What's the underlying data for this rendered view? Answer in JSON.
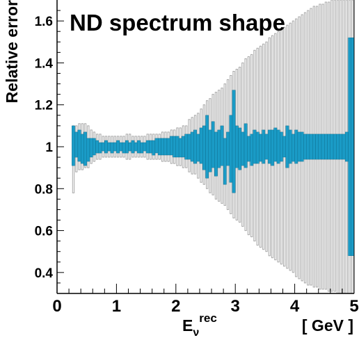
{
  "chart_data": {
    "type": "bar",
    "title": "ND spectrum shape",
    "ylabel": "Relative error",
    "xlabel": {
      "main": "E",
      "sub": "ν",
      "sup": "rec",
      "unit": "[ GeV ]"
    },
    "xlim": [
      0,
      5
    ],
    "ylim": [
      0.3,
      1.7
    ],
    "xticks": [
      {
        "v": 0,
        "label": "0"
      },
      {
        "v": 1,
        "label": "1"
      },
      {
        "v": 2,
        "label": "2"
      },
      {
        "v": 3,
        "label": "3"
      },
      {
        "v": 4,
        "label": "4"
      },
      {
        "v": 5,
        "label": "5"
      }
    ],
    "yticks": [
      {
        "v": 0.4,
        "label": "0.4"
      },
      {
        "v": 0.6,
        "label": "0.6"
      },
      {
        "v": 0.8,
        "label": "0.8"
      },
      {
        "v": 1.0,
        "label": "1"
      },
      {
        "v": 1.2,
        "label": "1.2"
      },
      {
        "v": 1.4,
        "label": "1.4"
      },
      {
        "v": 1.6,
        "label": "1.6"
      }
    ],
    "colors": {
      "filled": "#1a9bc6",
      "filled_edge": "#0a6a8a",
      "open_edge": "#a8a8a8",
      "axis": "#000000"
    },
    "series": [
      {
        "style": "open-bands",
        "bins": [
          [
            0.25,
            0.3,
            0.78,
            1.1
          ],
          [
            0.3,
            0.35,
            0.88,
            1.1
          ],
          [
            0.35,
            0.4,
            0.89,
            1.11
          ],
          [
            0.4,
            0.45,
            0.89,
            1.11
          ],
          [
            0.45,
            0.5,
            0.9,
            1.11
          ],
          [
            0.5,
            0.55,
            0.9,
            1.1
          ],
          [
            0.55,
            0.6,
            0.92,
            1.08
          ],
          [
            0.6,
            0.65,
            0.93,
            1.07
          ],
          [
            0.65,
            0.7,
            0.94,
            1.06
          ],
          [
            0.7,
            0.75,
            0.94,
            1.06
          ],
          [
            0.75,
            0.8,
            0.95,
            1.05
          ],
          [
            0.8,
            0.85,
            0.95,
            1.05
          ],
          [
            0.85,
            0.9,
            0.95,
            1.05
          ],
          [
            0.9,
            0.95,
            0.95,
            1.05
          ],
          [
            0.95,
            1.0,
            0.95,
            1.05
          ],
          [
            1.0,
            1.05,
            0.95,
            1.05
          ],
          [
            1.05,
            1.1,
            0.95,
            1.05
          ],
          [
            1.1,
            1.15,
            0.95,
            1.05
          ],
          [
            1.15,
            1.2,
            0.94,
            1.06
          ],
          [
            1.2,
            1.25,
            0.94,
            1.06
          ],
          [
            1.25,
            1.3,
            0.95,
            1.05
          ],
          [
            1.3,
            1.35,
            0.95,
            1.05
          ],
          [
            1.35,
            1.4,
            0.95,
            1.05
          ],
          [
            1.4,
            1.45,
            0.95,
            1.05
          ],
          [
            1.45,
            1.5,
            0.95,
            1.05
          ],
          [
            1.5,
            1.55,
            0.94,
            1.06
          ],
          [
            1.55,
            1.6,
            0.94,
            1.06
          ],
          [
            1.6,
            1.65,
            0.94,
            1.06
          ],
          [
            1.65,
            1.7,
            0.94,
            1.06
          ],
          [
            1.7,
            1.75,
            0.94,
            1.06
          ],
          [
            1.75,
            1.8,
            0.93,
            1.07
          ],
          [
            1.8,
            1.85,
            0.93,
            1.07
          ],
          [
            1.85,
            1.9,
            0.93,
            1.07
          ],
          [
            1.9,
            1.95,
            0.92,
            1.08
          ],
          [
            1.95,
            2.0,
            0.92,
            1.08
          ],
          [
            2.0,
            2.05,
            0.91,
            1.09
          ],
          [
            2.05,
            2.1,
            0.91,
            1.09
          ],
          [
            2.1,
            2.15,
            0.9,
            1.1
          ],
          [
            2.15,
            2.2,
            0.9,
            1.1
          ],
          [
            2.2,
            2.25,
            0.88,
            1.13
          ],
          [
            2.25,
            2.3,
            0.87,
            1.14
          ],
          [
            2.3,
            2.35,
            0.87,
            1.15
          ],
          [
            2.35,
            2.4,
            0.85,
            1.16
          ],
          [
            2.4,
            2.45,
            0.83,
            1.18
          ],
          [
            2.45,
            2.5,
            0.82,
            1.2
          ],
          [
            2.5,
            2.55,
            0.8,
            1.22
          ],
          [
            2.55,
            2.6,
            0.78,
            1.23
          ],
          [
            2.6,
            2.65,
            0.77,
            1.25
          ],
          [
            2.65,
            2.7,
            0.75,
            1.26
          ],
          [
            2.7,
            2.75,
            0.74,
            1.27
          ],
          [
            2.75,
            2.8,
            0.73,
            1.28
          ],
          [
            2.8,
            2.85,
            0.72,
            1.3
          ],
          [
            2.85,
            2.9,
            0.7,
            1.32
          ],
          [
            2.9,
            2.95,
            0.68,
            1.34
          ],
          [
            2.95,
            3.0,
            0.66,
            1.36
          ],
          [
            3.0,
            3.05,
            0.65,
            1.37
          ],
          [
            3.05,
            3.1,
            0.64,
            1.38
          ],
          [
            3.1,
            3.15,
            0.62,
            1.4
          ],
          [
            3.15,
            3.2,
            0.6,
            1.42
          ],
          [
            3.2,
            3.25,
            0.58,
            1.43
          ],
          [
            3.25,
            3.3,
            0.57,
            1.44
          ],
          [
            3.3,
            3.35,
            0.55,
            1.46
          ],
          [
            3.35,
            3.4,
            0.53,
            1.47
          ],
          [
            3.4,
            3.45,
            0.52,
            1.48
          ],
          [
            3.45,
            3.5,
            0.51,
            1.49
          ],
          [
            3.5,
            3.55,
            0.5,
            1.5
          ],
          [
            3.55,
            3.6,
            0.48,
            1.52
          ],
          [
            3.6,
            3.65,
            0.47,
            1.53
          ],
          [
            3.65,
            3.7,
            0.46,
            1.54
          ],
          [
            3.7,
            3.75,
            0.45,
            1.55
          ],
          [
            3.75,
            3.8,
            0.44,
            1.56
          ],
          [
            3.8,
            3.85,
            0.43,
            1.57
          ],
          [
            3.85,
            3.9,
            0.42,
            1.58
          ],
          [
            3.9,
            3.95,
            0.41,
            1.59
          ],
          [
            3.95,
            4.0,
            0.4,
            1.6
          ],
          [
            4.0,
            4.05,
            0.38,
            1.61
          ],
          [
            4.05,
            4.1,
            0.37,
            1.62
          ],
          [
            4.1,
            4.15,
            0.36,
            1.63
          ],
          [
            4.15,
            4.2,
            0.35,
            1.64
          ],
          [
            4.2,
            4.25,
            0.34,
            1.65
          ],
          [
            4.25,
            4.3,
            0.34,
            1.66
          ],
          [
            4.3,
            4.35,
            0.33,
            1.67
          ],
          [
            4.35,
            4.4,
            0.33,
            1.67
          ],
          [
            4.4,
            4.45,
            0.32,
            1.68
          ],
          [
            4.45,
            4.5,
            0.32,
            1.68
          ],
          [
            4.5,
            4.55,
            0.32,
            1.69
          ],
          [
            4.55,
            4.6,
            0.31,
            1.69
          ],
          [
            4.6,
            4.65,
            0.31,
            1.7
          ],
          [
            4.65,
            4.7,
            0.31,
            1.7
          ],
          [
            4.7,
            4.75,
            0.3,
            1.7
          ],
          [
            4.75,
            4.8,
            0.3,
            1.7
          ],
          [
            4.8,
            4.85,
            0.3,
            1.7
          ],
          [
            4.85,
            4.9,
            0.3,
            1.7
          ],
          [
            4.9,
            4.95,
            0.3,
            1.7
          ],
          [
            4.95,
            5.0,
            0.3,
            1.7
          ]
        ]
      },
      {
        "style": "filled-bands",
        "bins": [
          [
            0.25,
            0.3,
            0.91,
            1.1
          ],
          [
            0.3,
            0.35,
            0.95,
            1.07
          ],
          [
            0.35,
            0.4,
            0.93,
            1.08
          ],
          [
            0.4,
            0.45,
            0.92,
            1.06
          ],
          [
            0.45,
            0.5,
            0.91,
            1.07
          ],
          [
            0.5,
            0.55,
            0.93,
            1.04
          ],
          [
            0.55,
            0.6,
            0.95,
            1.04
          ],
          [
            0.6,
            0.65,
            0.96,
            1.04
          ],
          [
            0.65,
            0.7,
            0.97,
            1.03
          ],
          [
            0.7,
            0.75,
            0.97,
            1.02
          ],
          [
            0.75,
            0.8,
            0.98,
            1.02
          ],
          [
            0.8,
            0.85,
            0.97,
            1.03
          ],
          [
            0.85,
            0.9,
            0.98,
            1.02
          ],
          [
            0.9,
            0.95,
            0.97,
            1.02
          ],
          [
            0.95,
            1.0,
            0.98,
            1.02
          ],
          [
            1.0,
            1.05,
            0.97,
            1.03
          ],
          [
            1.05,
            1.1,
            0.98,
            1.02
          ],
          [
            1.1,
            1.15,
            0.97,
            1.02
          ],
          [
            1.15,
            1.2,
            0.97,
            1.03
          ],
          [
            1.2,
            1.25,
            0.98,
            1.02
          ],
          [
            1.25,
            1.3,
            0.97,
            1.03
          ],
          [
            1.3,
            1.35,
            0.98,
            1.02
          ],
          [
            1.35,
            1.4,
            0.97,
            1.03
          ],
          [
            1.4,
            1.45,
            0.97,
            1.02
          ],
          [
            1.45,
            1.5,
            0.98,
            1.02
          ],
          [
            1.5,
            1.55,
            0.97,
            1.03
          ],
          [
            1.55,
            1.6,
            0.97,
            1.03
          ],
          [
            1.6,
            1.65,
            0.96,
            1.03
          ],
          [
            1.65,
            1.7,
            0.97,
            1.04
          ],
          [
            1.7,
            1.75,
            0.96,
            1.04
          ],
          [
            1.75,
            1.8,
            0.96,
            1.04
          ],
          [
            1.8,
            1.85,
            0.96,
            1.04
          ],
          [
            1.85,
            1.9,
            0.96,
            1.04
          ],
          [
            1.9,
            1.95,
            0.96,
            1.05
          ],
          [
            1.95,
            2.0,
            0.95,
            1.05
          ],
          [
            2.0,
            2.05,
            0.95,
            1.05
          ],
          [
            2.05,
            2.1,
            0.95,
            1.04
          ],
          [
            2.1,
            2.15,
            0.95,
            1.05
          ],
          [
            2.15,
            2.2,
            0.94,
            1.06
          ],
          [
            2.2,
            2.25,
            0.94,
            1.06
          ],
          [
            2.25,
            2.3,
            0.93,
            1.07
          ],
          [
            2.3,
            2.35,
            0.92,
            1.08
          ],
          [
            2.35,
            2.4,
            0.93,
            1.06
          ],
          [
            2.4,
            2.45,
            0.92,
            1.09
          ],
          [
            2.45,
            2.5,
            0.89,
            1.1
          ],
          [
            2.5,
            2.55,
            0.85,
            1.15
          ],
          [
            2.55,
            2.6,
            0.88,
            1.08
          ],
          [
            2.6,
            2.65,
            0.9,
            1.12
          ],
          [
            2.65,
            2.7,
            0.86,
            1.07
          ],
          [
            2.7,
            2.75,
            0.9,
            1.08
          ],
          [
            2.75,
            2.8,
            0.91,
            1.1
          ],
          [
            2.8,
            2.85,
            0.82,
            1.04
          ],
          [
            2.85,
            2.9,
            0.91,
            1.07
          ],
          [
            2.9,
            2.95,
            0.83,
            1.15
          ],
          [
            2.95,
            3.0,
            0.78,
            1.27
          ],
          [
            3.0,
            3.05,
            0.9,
            1.1
          ],
          [
            3.05,
            3.1,
            0.89,
            1.09
          ],
          [
            3.1,
            3.15,
            0.91,
            1.07
          ],
          [
            3.15,
            3.2,
            0.9,
            1.11
          ],
          [
            3.2,
            3.25,
            0.93,
            1.05
          ],
          [
            3.25,
            3.3,
            0.91,
            1.06
          ],
          [
            3.3,
            3.35,
            0.92,
            1.08
          ],
          [
            3.35,
            3.4,
            0.92,
            1.07
          ],
          [
            3.4,
            3.45,
            0.93,
            1.06
          ],
          [
            3.45,
            3.5,
            0.92,
            1.08
          ],
          [
            3.5,
            3.55,
            0.94,
            1.06
          ],
          [
            3.55,
            3.6,
            0.92,
            1.08
          ],
          [
            3.6,
            3.65,
            0.91,
            1.08
          ],
          [
            3.65,
            3.7,
            0.93,
            1.09
          ],
          [
            3.7,
            3.75,
            0.92,
            1.08
          ],
          [
            3.75,
            3.8,
            0.93,
            1.07
          ],
          [
            3.8,
            3.85,
            0.95,
            1.05
          ],
          [
            3.85,
            3.9,
            0.9,
            1.1
          ],
          [
            3.9,
            3.95,
            0.92,
            1.08
          ],
          [
            3.95,
            4.0,
            0.93,
            1.06
          ],
          [
            4.0,
            4.05,
            0.92,
            1.08
          ],
          [
            4.05,
            4.1,
            0.93,
            1.07
          ],
          [
            4.1,
            4.15,
            0.93,
            1.07
          ],
          [
            4.15,
            4.2,
            0.94,
            1.06
          ],
          [
            4.2,
            4.25,
            0.94,
            1.06
          ],
          [
            4.25,
            4.3,
            0.94,
            1.06
          ],
          [
            4.3,
            4.35,
            0.94,
            1.06
          ],
          [
            4.35,
            4.4,
            0.94,
            1.06
          ],
          [
            4.4,
            4.45,
            0.94,
            1.06
          ],
          [
            4.45,
            4.5,
            0.94,
            1.06
          ],
          [
            4.5,
            4.55,
            0.94,
            1.06
          ],
          [
            4.55,
            4.6,
            0.94,
            1.06
          ],
          [
            4.6,
            4.65,
            0.94,
            1.06
          ],
          [
            4.65,
            4.7,
            0.94,
            1.06
          ],
          [
            4.7,
            4.75,
            0.94,
            1.06
          ],
          [
            4.75,
            4.8,
            0.94,
            1.06
          ],
          [
            4.8,
            4.85,
            0.94,
            1.06
          ],
          [
            4.85,
            4.9,
            0.93,
            1.07
          ],
          [
            4.9,
            4.95,
            0.48,
            1.52
          ],
          [
            4.95,
            5.0,
            0.48,
            1.52
          ]
        ]
      }
    ]
  }
}
